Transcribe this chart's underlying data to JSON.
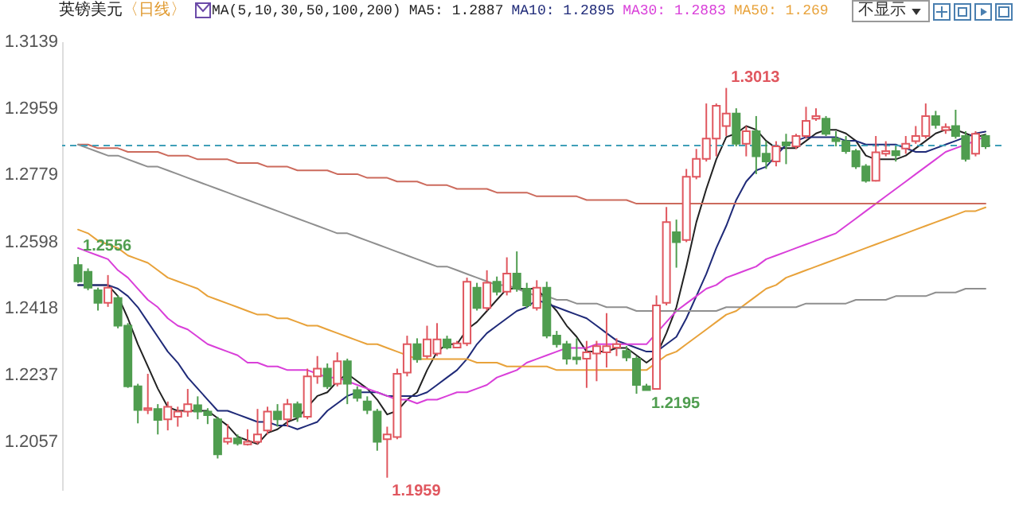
{
  "chart_data": {
    "type": "candlestick",
    "title": "英镑美元",
    "subtitle": "〈日线〉",
    "categories": [
      null,
      null,
      null,
      null,
      null,
      null,
      null,
      null,
      null,
      null,
      null,
      null,
      null,
      null,
      null,
      null,
      null,
      null,
      null,
      null,
      null,
      null,
      null,
      null,
      null,
      null,
      null,
      null,
      null,
      null,
      null,
      null,
      null,
      null,
      null,
      null,
      null,
      null,
      null,
      null,
      null,
      null,
      null,
      null,
      null,
      null,
      null,
      null,
      null,
      null,
      null,
      null,
      null,
      null,
      null,
      null,
      null,
      null,
      null,
      null,
      null,
      null,
      null,
      null,
      null,
      null,
      null,
      null,
      null,
      null,
      null,
      null,
      null,
      null,
      null,
      null,
      null,
      null,
      null,
      null,
      null,
      null,
      null,
      null,
      null,
      null,
      null,
      null,
      null,
      null,
      null,
      null
    ],
    "series": [
      {
        "colors": [
          "#4f9d4f",
          "#4f9d4f",
          "#4f9d4f",
          "#e0575f",
          "#4f9d4f",
          "#4f9d4f",
          "#4f9d4f",
          "#e0575f",
          "#4f9d4f",
          "#e0575f",
          "#e0575f",
          "#e0575f",
          "#4f9d4f",
          "#4f9d4f",
          "#4f9d4f",
          "#e0575f",
          "#4f9d4f",
          "#e0575f",
          "#e0575f",
          "#e0575f",
          "#4f9d4f",
          "#e0575f",
          "#4f9d4f",
          "#e0575f",
          "#e0575f",
          "#4f9d4f",
          "#e0575f",
          "#4f9d4f",
          "#4f9d4f",
          "#4f9d4f",
          "#4f9d4f",
          "#e0575f",
          "#e0575f",
          "#e0575f",
          "#4f9d4f",
          "#e0575f",
          "#e0575f",
          "#4f9d4f",
          "#e0575f",
          "#e0575f",
          "#4f9d4f",
          "#e0575f",
          "#4f9d4f",
          "#e0575f",
          "#4f9d4f",
          "#4f9d4f",
          "#e0575f",
          "#4f9d4f",
          "#4f9d4f",
          "#4f9d4f",
          "#4f9d4f",
          "#e0575f",
          "#e0575f",
          "#e0575f",
          "#e0575f",
          "#4f9d4f",
          "#4f9d4f",
          "#4f9d4f",
          "#e0575f",
          "#e0575f",
          "#4f9d4f",
          "#e0575f",
          "#e0575f",
          "#e0575f",
          "#e0575f",
          "#e0575f",
          "#4f9d4f",
          "#e0575f",
          "#4f9d4f",
          "#4f9d4f",
          "#e0575f",
          "#4f9d4f",
          "#e0575f",
          "#e0575f",
          "#e0575f",
          "#4f9d4f",
          "#4f9d4f",
          "#4f9d4f",
          "#4f9d4f",
          "#4f9d4f",
          "#e0575f",
          "#e0575f",
          "#4f9d4f",
          "#e0575f",
          "#e0575f",
          "#e0575f",
          "#4f9d4f",
          "#e0575f",
          "#4f9d4f",
          "#4f9d4f",
          "#e0575f",
          "#4f9d4f"
        ],
        "ohlc": [
          [
            1.2534,
            1.2556,
            1.2486,
            1.249
          ],
          [
            1.2516,
            1.2525,
            1.2466,
            1.2473
          ],
          [
            1.2466,
            1.2473,
            1.2411,
            1.2432
          ],
          [
            1.2432,
            1.2507,
            1.2421,
            1.2473
          ],
          [
            1.2445,
            1.2452,
            1.2363,
            1.237
          ],
          [
            1.237,
            1.2377,
            1.2202,
            1.2206
          ],
          [
            1.2206,
            1.2213,
            1.2106,
            1.2142
          ],
          [
            1.2142,
            1.224,
            1.2131,
            1.2147
          ],
          [
            1.2145,
            1.2158,
            1.2076,
            1.2115
          ],
          [
            1.2117,
            1.2165,
            1.2087,
            1.2151
          ],
          [
            1.2124,
            1.2151,
            1.2097,
            1.2138
          ],
          [
            1.2138,
            1.2199,
            1.2124,
            1.2158
          ],
          [
            1.2155,
            1.2179,
            1.2117,
            1.2138
          ],
          [
            1.2138,
            1.2147,
            1.2104,
            1.2128
          ],
          [
            1.2117,
            1.2124,
            1.2011,
            1.2022
          ],
          [
            1.2056,
            1.2104,
            1.2049,
            1.2065
          ],
          [
            1.2065,
            1.2076,
            1.2046,
            1.2052
          ],
          [
            1.2049,
            1.209,
            1.2046,
            1.2056
          ],
          [
            1.2056,
            1.2145,
            1.2049,
            1.2076
          ],
          [
            1.2087,
            1.2151,
            1.2076,
            1.2138
          ],
          [
            1.2138,
            1.2158,
            1.2097,
            1.2117
          ],
          [
            1.2117,
            1.2172,
            1.2097,
            1.2158
          ],
          [
            1.2158,
            1.2165,
            1.211,
            1.2124
          ],
          [
            1.2124,
            1.2254,
            1.2117,
            1.2233
          ],
          [
            1.2233,
            1.2288,
            1.2213,
            1.2254
          ],
          [
            1.2254,
            1.2268,
            1.2199,
            1.2206
          ],
          [
            1.2213,
            1.2298,
            1.2206,
            1.2274
          ],
          [
            1.2274,
            1.2281,
            1.2158,
            1.2213
          ],
          [
            1.2196,
            1.2206,
            1.2165,
            1.2175
          ],
          [
            1.2165,
            1.2179,
            1.2131,
            1.2142
          ],
          [
            1.2138,
            1.2145,
            1.2032,
            1.2056
          ],
          [
            1.2063,
            1.2097,
            1.1959,
            1.2076
          ],
          [
            1.2069,
            1.2254,
            1.2063,
            1.224
          ],
          [
            1.2243,
            1.2343,
            1.2233,
            1.232
          ],
          [
            1.232,
            1.2336,
            1.227,
            1.2279
          ],
          [
            1.2288,
            1.237,
            1.2281,
            1.2333
          ],
          [
            1.2295,
            1.2377,
            1.2288,
            1.2333
          ],
          [
            1.2333,
            1.2343,
            1.2306,
            1.2311
          ],
          [
            1.2311,
            1.2329,
            1.2309,
            1.2322
          ],
          [
            1.2322,
            1.25,
            1.2315,
            1.2489
          ],
          [
            1.2473,
            1.2486,
            1.2411,
            1.2418
          ],
          [
            1.2418,
            1.252,
            1.2411,
            1.2486
          ],
          [
            1.2489,
            1.2503,
            1.2452,
            1.2462
          ],
          [
            1.2462,
            1.2555,
            1.2452,
            1.2511
          ],
          [
            1.2511,
            1.2571,
            1.2462,
            1.247
          ],
          [
            1.247,
            1.2486,
            1.2418,
            1.2425
          ],
          [
            1.2418,
            1.2493,
            1.2411,
            1.2473
          ],
          [
            1.2473,
            1.2489,
            1.2336,
            1.2343
          ],
          [
            1.2343,
            1.2356,
            1.2311,
            1.232
          ],
          [
            1.232,
            1.2329,
            1.2265,
            1.2281
          ],
          [
            1.2284,
            1.2336,
            1.2265,
            1.2279
          ],
          [
            1.2281,
            1.2329,
            1.2202,
            1.2298
          ],
          [
            1.2295,
            1.2329,
            1.222,
            1.2315
          ],
          [
            1.2298,
            1.2404,
            1.2257,
            1.2315
          ],
          [
            1.2311,
            1.2336,
            1.2288,
            1.232
          ],
          [
            1.2302,
            1.2315,
            1.2274,
            1.2284
          ],
          [
            1.2281,
            1.2288,
            1.2186,
            1.221
          ],
          [
            1.2206,
            1.2213,
            1.2195,
            1.2196
          ],
          [
            1.2199,
            1.2452,
            1.2199,
            1.2425
          ],
          [
            1.2432,
            1.2691,
            1.2425,
            1.265
          ],
          [
            1.2623,
            1.2657,
            1.2527,
            1.2596
          ],
          [
            1.2602,
            1.2794,
            1.2596,
            1.2773
          ],
          [
            1.2773,
            1.2848,
            1.2766,
            1.2821
          ],
          [
            1.2821,
            1.2971,
            1.2814,
            1.2876
          ],
          [
            1.2876,
            1.2971,
            1.2828,
            1.2965
          ],
          [
            1.291,
            1.3013,
            1.2883,
            1.2944
          ],
          [
            1.2944,
            1.2958,
            1.2855,
            1.2862
          ],
          [
            1.2862,
            1.291,
            1.2828,
            1.2896
          ],
          [
            1.2896,
            1.2937,
            1.278,
            1.2828
          ],
          [
            1.2835,
            1.2869,
            1.2794,
            1.2814
          ],
          [
            1.2814,
            1.2869,
            1.2801,
            1.2855
          ],
          [
            1.2866,
            1.2889,
            1.2807,
            1.2858
          ],
          [
            1.2855,
            1.2889,
            1.2848,
            1.2883
          ],
          [
            1.2883,
            1.2962,
            1.2876,
            1.2924
          ],
          [
            1.293,
            1.2958,
            1.2924,
            1.2937
          ],
          [
            1.293,
            1.2937,
            1.2883,
            1.2889
          ],
          [
            1.2876,
            1.2896,
            1.2855,
            1.2869
          ],
          [
            1.2869,
            1.2883,
            1.2835,
            1.2842
          ],
          [
            1.2842,
            1.2848,
            1.2794,
            1.2801
          ],
          [
            1.2801,
            1.2807,
            1.2757,
            1.2762
          ],
          [
            1.2762,
            1.2883,
            1.276,
            1.2839
          ],
          [
            1.2835,
            1.2869,
            1.2828,
            1.2842
          ],
          [
            1.2842,
            1.2855,
            1.2814,
            1.2831
          ],
          [
            1.2849,
            1.2883,
            1.2835,
            1.2862
          ],
          [
            1.2869,
            1.291,
            1.2862,
            1.2883
          ],
          [
            1.2883,
            1.2971,
            1.2876,
            1.2937
          ],
          [
            1.2937,
            1.2951,
            1.2903,
            1.2913
          ],
          [
            1.2899,
            1.2917,
            1.2889,
            1.2907
          ],
          [
            1.291,
            1.2954,
            1.2876,
            1.2883
          ],
          [
            1.2883,
            1.2896,
            1.2814,
            1.2821
          ],
          [
            1.2835,
            1.2896,
            1.2828,
            1.2889
          ],
          [
            1.2883,
            1.2889,
            1.2848,
            1.2855
          ]
        ]
      },
      {
        "type": "line",
        "name": "MA5: 1.2887",
        "color": "#222222",
        "values": [
          1.248,
          1.248,
          1.248,
          1.248,
          1.245,
          1.239,
          1.232,
          1.226,
          1.22,
          1.215,
          1.214,
          1.214,
          1.214,
          1.214,
          1.212,
          1.21,
          1.207,
          1.206,
          1.205,
          1.208,
          1.209,
          1.211,
          1.212,
          1.215,
          1.218,
          1.219,
          1.222,
          1.224,
          1.222,
          1.22,
          1.217,
          1.213,
          1.214,
          1.217,
          1.219,
          1.225,
          1.23,
          1.232,
          1.232,
          1.236,
          1.238,
          1.241,
          1.244,
          1.247,
          1.247,
          1.247,
          1.247,
          1.244,
          1.241,
          1.237,
          1.234,
          1.23,
          1.23,
          1.23,
          1.231,
          1.231,
          1.229,
          1.227,
          1.229,
          1.235,
          1.242,
          1.253,
          1.265,
          1.274,
          1.282,
          1.288,
          1.289,
          1.291,
          1.29,
          1.287,
          1.285,
          1.285,
          1.285,
          1.287,
          1.289,
          1.29,
          1.29,
          1.289,
          1.287,
          1.283,
          1.282,
          1.282,
          1.282,
          1.283,
          1.285,
          1.287,
          1.289,
          1.29,
          1.29,
          1.289,
          1.288,
          1.2887
        ]
      },
      {
        "type": "line",
        "name": "MA10: 1.2895",
        "color": "#1f2a78",
        "values": [
          1.248,
          1.248,
          1.248,
          1.248,
          1.247,
          1.245,
          1.242,
          1.238,
          1.234,
          1.23,
          1.227,
          1.223,
          1.22,
          1.217,
          1.214,
          1.214,
          1.213,
          1.212,
          1.211,
          1.211,
          1.21,
          1.21,
          1.209,
          1.21,
          1.211,
          1.214,
          1.216,
          1.218,
          1.219,
          1.219,
          1.219,
          1.218,
          1.218,
          1.218,
          1.218,
          1.219,
          1.221,
          1.223,
          1.225,
          1.228,
          1.232,
          1.235,
          1.237,
          1.239,
          1.241,
          1.242,
          1.244,
          1.243,
          1.242,
          1.241,
          1.24,
          1.239,
          1.237,
          1.235,
          1.233,
          1.232,
          1.231,
          1.23,
          1.23,
          1.232,
          1.234,
          1.239,
          1.245,
          1.251,
          1.258,
          1.264,
          1.271,
          1.276,
          1.279,
          1.28,
          1.283,
          1.286,
          1.287,
          1.288,
          1.288,
          1.288,
          1.288,
          1.287,
          1.287,
          1.286,
          1.286,
          1.286,
          1.286,
          1.285,
          1.284,
          1.284,
          1.285,
          1.286,
          1.287,
          1.288,
          1.289,
          1.2895
        ]
      },
      {
        "type": "line",
        "name": "MA30: 1.2883",
        "color": "#d93fd9",
        "values": [
          1.258,
          1.257,
          1.256,
          1.255,
          1.252,
          1.25,
          1.247,
          1.244,
          1.242,
          1.239,
          1.237,
          1.236,
          1.234,
          1.232,
          1.231,
          1.23,
          1.229,
          1.227,
          1.227,
          1.226,
          1.226,
          1.225,
          1.225,
          1.225,
          1.224,
          1.223,
          1.223,
          1.222,
          1.221,
          1.22,
          1.219,
          1.218,
          1.217,
          1.217,
          1.216,
          1.217,
          1.217,
          1.218,
          1.219,
          1.219,
          1.22,
          1.221,
          1.223,
          1.224,
          1.225,
          1.227,
          1.228,
          1.229,
          1.23,
          1.231,
          1.231,
          1.231,
          1.232,
          1.232,
          1.232,
          1.232,
          1.232,
          1.232,
          1.235,
          1.238,
          1.241,
          1.243,
          1.245,
          1.247,
          1.248,
          1.25,
          1.251,
          1.252,
          1.253,
          1.255,
          1.256,
          1.257,
          1.258,
          1.259,
          1.26,
          1.261,
          1.262,
          1.264,
          1.266,
          1.268,
          1.27,
          1.272,
          1.274,
          1.276,
          1.278,
          1.28,
          1.282,
          1.284,
          1.285,
          1.286,
          1.287,
          1.2883
        ]
      },
      {
        "type": "line",
        "name": "MA50: 1.269",
        "color": "#e8a23a",
        "values": [
          1.263,
          1.262,
          1.26,
          1.259,
          1.258,
          1.256,
          1.255,
          1.254,
          1.252,
          1.25,
          1.249,
          1.248,
          1.247,
          1.245,
          1.244,
          1.243,
          1.242,
          1.241,
          1.24,
          1.24,
          1.239,
          1.239,
          1.238,
          1.237,
          1.237,
          1.236,
          1.235,
          1.234,
          1.233,
          1.232,
          1.232,
          1.231,
          1.23,
          1.229,
          1.228,
          1.228,
          1.228,
          1.228,
          1.228,
          1.228,
          1.227,
          1.227,
          1.227,
          1.226,
          1.226,
          1.226,
          1.226,
          1.226,
          1.225,
          1.225,
          1.225,
          1.225,
          1.225,
          1.225,
          1.225,
          1.225,
          1.225,
          1.225,
          1.227,
          1.229,
          1.23,
          1.232,
          1.234,
          1.236,
          1.238,
          1.24,
          1.241,
          1.243,
          1.245,
          1.247,
          1.248,
          1.25,
          1.251,
          1.252,
          1.253,
          1.254,
          1.255,
          1.256,
          1.257,
          1.258,
          1.259,
          1.26,
          1.261,
          1.262,
          1.263,
          1.264,
          1.265,
          1.266,
          1.267,
          1.268,
          1.268,
          1.269
        ]
      },
      {
        "type": "line",
        "color": "#cc6a5c",
        "values": [
          1.286,
          1.286,
          1.285,
          1.285,
          1.285,
          1.284,
          1.284,
          1.284,
          1.284,
          1.283,
          1.283,
          1.283,
          1.282,
          1.282,
          1.282,
          1.282,
          1.281,
          1.281,
          1.281,
          1.28,
          1.28,
          1.28,
          1.279,
          1.279,
          1.279,
          1.279,
          1.278,
          1.278,
          1.278,
          1.277,
          1.277,
          1.277,
          1.276,
          1.276,
          1.276,
          1.275,
          1.275,
          1.275,
          1.274,
          1.274,
          1.274,
          1.274,
          1.273,
          1.273,
          1.273,
          1.273,
          1.272,
          1.272,
          1.272,
          1.272,
          1.272,
          1.271,
          1.271,
          1.271,
          1.271,
          1.271,
          1.27,
          1.27,
          1.27,
          1.27,
          1.27,
          1.27,
          1.27,
          1.27,
          1.27,
          1.27,
          1.27,
          1.27,
          1.27,
          1.27,
          1.27,
          1.27,
          1.27,
          1.27,
          1.27,
          1.27,
          1.27,
          1.27,
          1.27,
          1.27,
          1.27,
          1.27,
          1.27,
          1.27,
          1.27,
          1.27,
          1.27,
          1.27,
          1.27,
          1.27,
          1.27,
          1.27
        ]
      },
      {
        "type": "line",
        "color": "#8f8f8f",
        "values": [
          1.286,
          1.285,
          1.284,
          1.283,
          1.283,
          1.282,
          1.281,
          1.28,
          1.28,
          1.279,
          1.278,
          1.277,
          1.276,
          1.275,
          1.274,
          1.273,
          1.272,
          1.271,
          1.27,
          1.269,
          1.268,
          1.267,
          1.266,
          1.265,
          1.264,
          1.263,
          1.262,
          1.262,
          1.261,
          1.26,
          1.259,
          1.258,
          1.257,
          1.256,
          1.255,
          1.254,
          1.253,
          1.253,
          1.252,
          1.251,
          1.25,
          1.249,
          1.248,
          1.248,
          1.247,
          1.246,
          1.245,
          1.245,
          1.244,
          1.244,
          1.243,
          1.243,
          1.243,
          1.242,
          1.242,
          1.242,
          1.241,
          1.241,
          1.241,
          1.241,
          1.241,
          1.241,
          1.241,
          1.241,
          1.241,
          1.242,
          1.242,
          1.242,
          1.242,
          1.242,
          1.242,
          1.242,
          1.242,
          1.243,
          1.243,
          1.243,
          1.243,
          1.243,
          1.244,
          1.244,
          1.244,
          1.244,
          1.245,
          1.245,
          1.245,
          1.245,
          1.246,
          1.246,
          1.246,
          1.247,
          1.247,
          1.247
        ]
      }
    ],
    "ylim": [
      1.1926,
      1.3139
    ],
    "yticks": [
      1.2057,
      1.2237,
      1.2418,
      1.2598,
      1.2779,
      1.2959,
      1.3139
    ],
    "ref_lines": [
      {
        "axis": "y",
        "value": 1.2857,
        "color": "#3f9fb8",
        "line_style": "dashed"
      }
    ],
    "annotations": [
      "MA(5,10,30,50,100,200)",
      "不显示",
      "1.3013",
      "1.2556",
      "1.1959",
      "1.2195"
    ],
    "legend": "top",
    "marker": "none",
    "line_style": "solid"
  }
}
